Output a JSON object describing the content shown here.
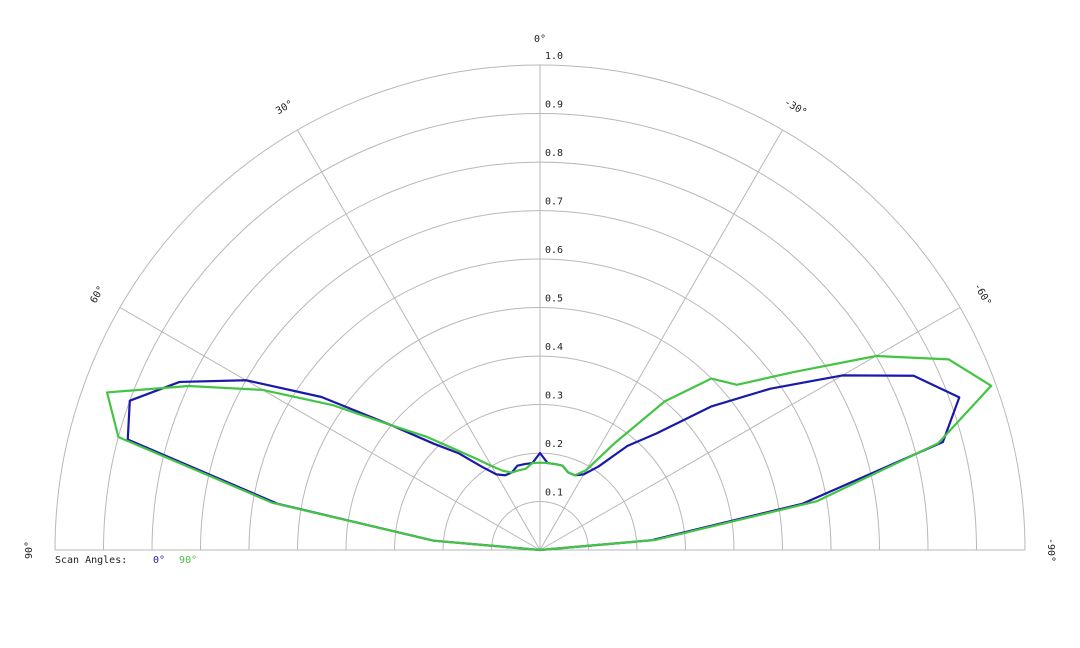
{
  "chart_data": {
    "type": "polar",
    "x": [
      -90,
      -85,
      -80,
      -75,
      -70,
      -65,
      -60,
      -55,
      -50,
      -45,
      -40,
      -35,
      -30,
      -25,
      -20,
      -15,
      -10,
      -5,
      0,
      5,
      10,
      15,
      20,
      25,
      30,
      35,
      40,
      45,
      50,
      55,
      60,
      65,
      70,
      75,
      80,
      85,
      90
    ],
    "series": [
      {
        "name": "0°",
        "color": "#1a1aaa",
        "values": [
          0,
          0.23,
          0.55,
          0.86,
          0.92,
          0.85,
          0.72,
          0.58,
          0.46,
          0.34,
          0.28,
          0.21,
          0.18,
          0.17,
          0.17,
          0.18,
          0.18,
          0.18,
          0.2,
          0.18,
          0.18,
          0.18,
          0.17,
          0.17,
          0.18,
          0.21,
          0.26,
          0.31,
          0.4,
          0.55,
          0.7,
          0.82,
          0.9,
          0.88,
          0.55,
          0.22,
          0
        ]
      },
      {
        "name": "90°",
        "color": "#44c444",
        "values": [
          0,
          0.24,
          0.58,
          0.85,
          0.99,
          0.93,
          0.8,
          0.64,
          0.53,
          0.5,
          0.4,
          0.27,
          0.19,
          0.17,
          0.17,
          0.18,
          0.18,
          0.18,
          0.18,
          0.18,
          0.17,
          0.17,
          0.17,
          0.18,
          0.2,
          0.23,
          0.27,
          0.33,
          0.4,
          0.52,
          0.66,
          0.8,
          0.95,
          0.9,
          0.56,
          0.22,
          0
        ]
      }
    ],
    "legend_title": "Scan Angles:",
    "rlim": [
      0,
      1
    ],
    "rticks": [
      0.1,
      0.2,
      0.3,
      0.4,
      0.5,
      0.6,
      0.7,
      0.8,
      0.9,
      {
        "value": 1,
        "label": "1.0"
      }
    ],
    "thetalim": [
      -90,
      90
    ],
    "thetaticks": [
      {
        "value": 0,
        "label": "0°"
      },
      {
        "value": 30,
        "label": "30°"
      },
      {
        "value": 60,
        "label": "60°"
      },
      {
        "value": 90,
        "label": "90°"
      },
      {
        "value": -30,
        "label": "-30°"
      },
      {
        "value": -60,
        "label": "-60°"
      },
      {
        "value": -90,
        "label": "-90°"
      }
    ],
    "grid": true
  }
}
